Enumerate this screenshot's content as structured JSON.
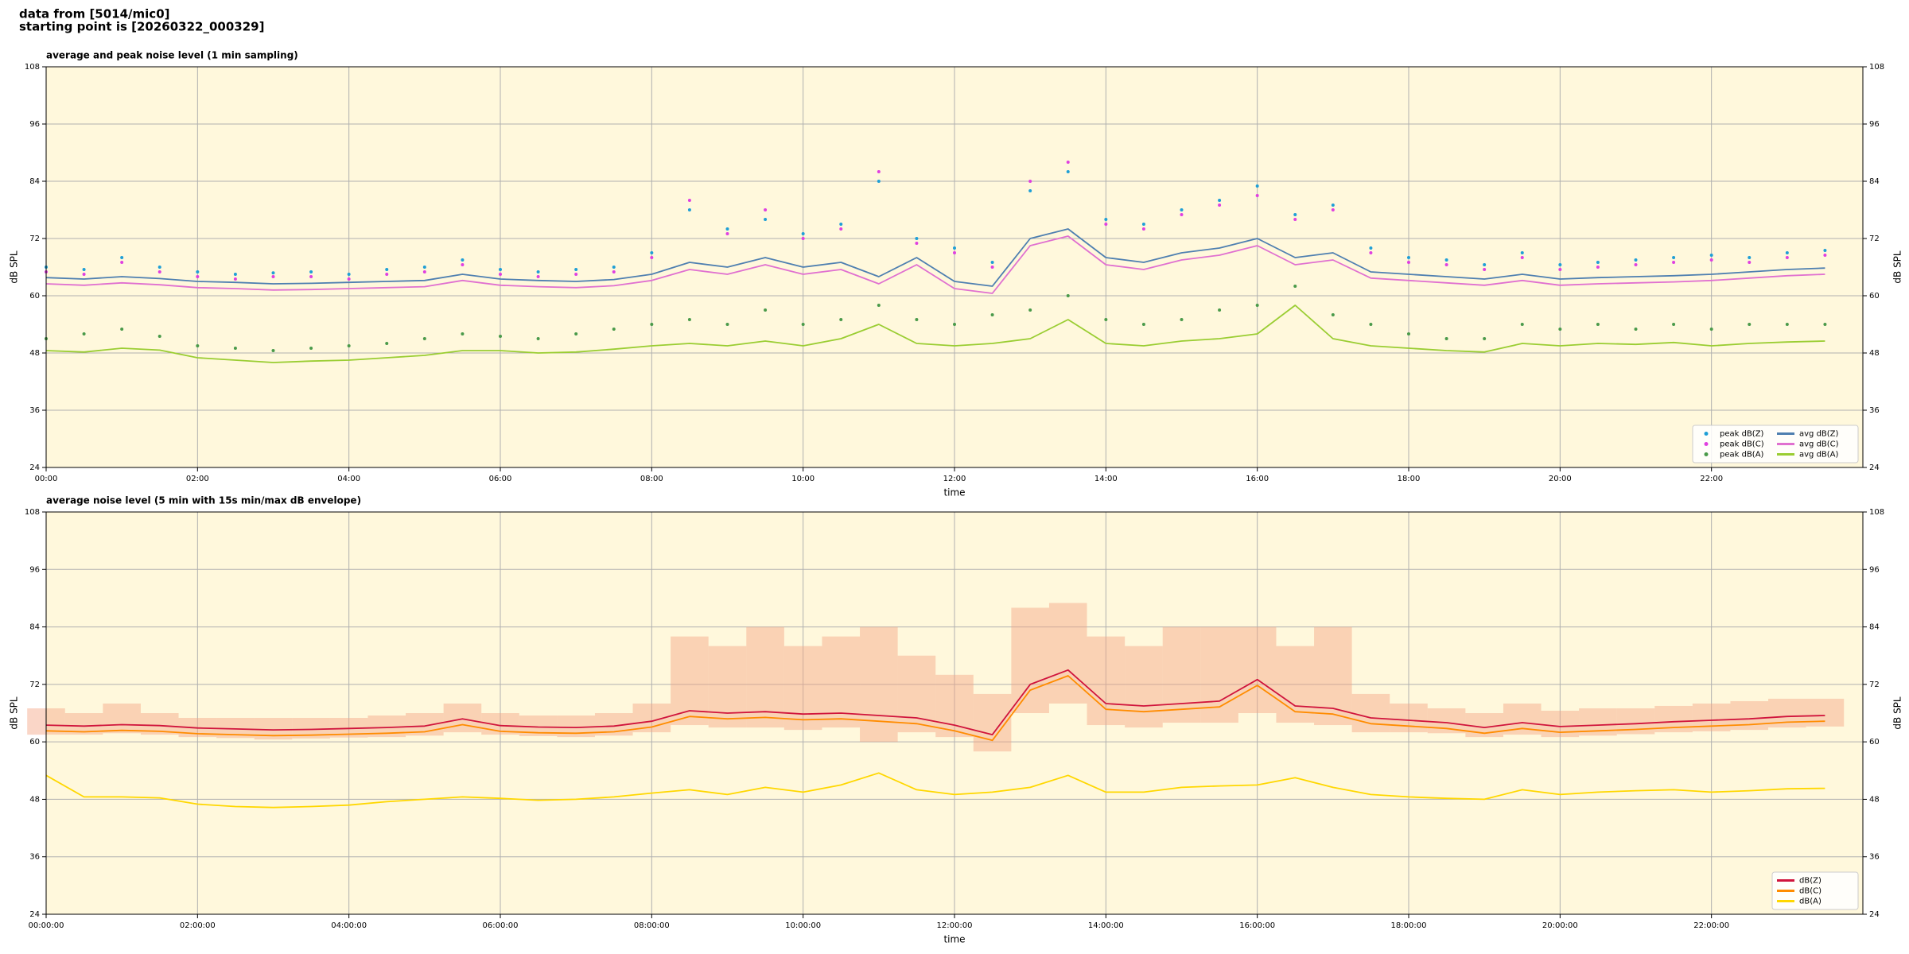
{
  "header": {
    "lines": [
      "data from [5014/mic0]",
      "starting point is [20260322_000329]"
    ]
  },
  "chart_data": [
    {
      "type": "line",
      "title": "average and peak noise level (1 min sampling)",
      "x_label": "time",
      "y_label": "dB SPL",
      "xlim": [
        0,
        24
      ],
      "ylim": [
        24,
        108
      ],
      "yticks": [
        24,
        36,
        48,
        60,
        72,
        84,
        96,
        108
      ],
      "xticks": [
        {
          "value": 0,
          "label": "00:00"
        },
        {
          "value": 2,
          "label": "02:00"
        },
        {
          "value": 4,
          "label": "04:00"
        },
        {
          "value": 6,
          "label": "06:00"
        },
        {
          "value": 8,
          "label": "08:00"
        },
        {
          "value": 10,
          "label": "10:00"
        },
        {
          "value": 12,
          "label": "12:00"
        },
        {
          "value": 14,
          "label": "14:00"
        },
        {
          "value": 16,
          "label": "16:00"
        },
        {
          "value": 18,
          "label": "18:00"
        },
        {
          "value": 20,
          "label": "20:00"
        },
        {
          "value": 22,
          "label": "22:00"
        }
      ],
      "grid": true,
      "legend": "lower right",
      "legend_columns": 2,
      "x": [
        0,
        0.5,
        1,
        1.5,
        2,
        2.5,
        3,
        3.5,
        4,
        4.5,
        5,
        5.5,
        6,
        6.5,
        7,
        7.5,
        8,
        8.5,
        9,
        9.5,
        10,
        10.5,
        11,
        11.5,
        12,
        12.5,
        13,
        13.5,
        14,
        14.5,
        15,
        15.5,
        16,
        16.5,
        17,
        17.5,
        18,
        18.5,
        19,
        19.5,
        20,
        20.5,
        21,
        21.5,
        22,
        22.5,
        23,
        23.5
      ],
      "series": [
        {
          "name": "peak dB(Z)",
          "mark": "dot",
          "color": "#1f9fd6",
          "values": [
            66,
            65.5,
            68,
            66,
            65,
            64.5,
            64.8,
            65,
            64.5,
            65.5,
            66,
            67.5,
            65.5,
            65,
            65.5,
            66,
            69,
            78,
            74,
            76,
            73,
            75,
            84,
            72,
            70,
            67,
            82,
            86,
            76,
            75,
            78,
            80,
            83,
            77,
            79,
            70,
            68,
            67.5,
            66.5,
            69,
            66.5,
            67,
            67.5,
            68,
            68.5,
            68,
            69,
            69.5
          ]
        },
        {
          "name": "peak dB(C)",
          "mark": "dot",
          "color": "#e040e0",
          "values": [
            65,
            64.5,
            67,
            65,
            64,
            63.5,
            64,
            64,
            63.5,
            64.5,
            65,
            66.5,
            64.5,
            64,
            64.5,
            65,
            68,
            80,
            73,
            78,
            72,
            74,
            86,
            71,
            69,
            66,
            84,
            88,
            75,
            74,
            77,
            79,
            81,
            76,
            78,
            69,
            67,
            66.5,
            65.5,
            68,
            65.5,
            66,
            66.5,
            67,
            67.5,
            67,
            68,
            68.5
          ]
        },
        {
          "name": "peak dB(A)",
          "mark": "dot",
          "color": "#4a9a4a",
          "values": [
            51,
            52,
            53,
            51.5,
            49.5,
            49,
            48.5,
            49,
            49.5,
            50,
            51,
            52,
            51.5,
            51,
            52,
            53,
            54,
            55,
            54,
            57,
            54,
            55,
            58,
            55,
            54,
            56,
            57,
            60,
            55,
            54,
            55,
            57,
            58,
            62,
            56,
            54,
            52,
            51,
            51,
            54,
            53,
            54,
            53,
            54,
            53,
            54,
            54,
            54
          ]
        },
        {
          "name": "avg dB(Z)",
          "mark": "line",
          "color": "#4e7fb0",
          "values": [
            63.8,
            63.5,
            64,
            63.6,
            63,
            62.8,
            62.5,
            62.6,
            62.8,
            63,
            63.2,
            64.5,
            63.5,
            63.2,
            63,
            63.4,
            64.5,
            67,
            66,
            68,
            66,
            67,
            64,
            68,
            63,
            62,
            72,
            74,
            68,
            67,
            69,
            70,
            72,
            68,
            69,
            65,
            64.5,
            64,
            63.5,
            64.5,
            63.5,
            63.8,
            64,
            64.2,
            64.5,
            65,
            65.5,
            65.8
          ]
        },
        {
          "name": "avg dB(C)",
          "mark": "line",
          "color": "#e070d0",
          "values": [
            62.5,
            62.2,
            62.7,
            62.3,
            61.7,
            61.5,
            61.2,
            61.3,
            61.5,
            61.7,
            61.9,
            63.2,
            62.2,
            61.9,
            61.7,
            62.1,
            63.2,
            65.5,
            64.5,
            66.5,
            64.5,
            65.5,
            62.5,
            66.5,
            61.5,
            60.5,
            70.5,
            72.5,
            66.5,
            65.5,
            67.5,
            68.5,
            70.5,
            66.5,
            67.5,
            63.7,
            63.2,
            62.7,
            62.2,
            63.2,
            62.2,
            62.5,
            62.7,
            62.9,
            63.2,
            63.7,
            64.2,
            64.5
          ]
        },
        {
          "name": "avg dB(A)",
          "mark": "line",
          "color": "#9acd32",
          "values": [
            48.5,
            48.2,
            49,
            48.6,
            47,
            46.5,
            46,
            46.3,
            46.5,
            47,
            47.5,
            48.5,
            48.5,
            48,
            48.2,
            48.8,
            49.5,
            50,
            49.5,
            50.5,
            49.5,
            51,
            54,
            50,
            49.5,
            50,
            51,
            55,
            50,
            49.5,
            50.5,
            51,
            52,
            58,
            51,
            49.5,
            49,
            48.5,
            48.2,
            50,
            49.5,
            50,
            49.8,
            50.2,
            49.5,
            50,
            50.3,
            50.5
          ]
        }
      ]
    },
    {
      "type": "line",
      "title": "average noise level (5 min with 15s min/max dB envelope)",
      "x_label": "time",
      "y_label": "dB SPL",
      "xlim": [
        0,
        24
      ],
      "ylim": [
        24,
        108
      ],
      "yticks": [
        24,
        36,
        48,
        60,
        72,
        84,
        96,
        108
      ],
      "xticks": [
        {
          "value": 0,
          "label": "00:00:00"
        },
        {
          "value": 2,
          "label": "02:00:00"
        },
        {
          "value": 4,
          "label": "04:00:00"
        },
        {
          "value": 6,
          "label": "06:00:00"
        },
        {
          "value": 8,
          "label": "08:00:00"
        },
        {
          "value": 10,
          "label": "10:00:00"
        },
        {
          "value": 12,
          "label": "12:00:00"
        },
        {
          "value": 14,
          "label": "14:00:00"
        },
        {
          "value": 16,
          "label": "16:00:00"
        },
        {
          "value": 18,
          "label": "18:00:00"
        },
        {
          "value": 20,
          "label": "20:00:00"
        },
        {
          "value": 22,
          "label": "22:00:00"
        }
      ],
      "grid": true,
      "legend": "lower right",
      "legend_columns": 1,
      "x": [
        0,
        0.5,
        1,
        1.5,
        2,
        2.5,
        3,
        3.5,
        4,
        4.5,
        5,
        5.5,
        6,
        6.5,
        7,
        7.5,
        8,
        8.5,
        9,
        9.5,
        10,
        10.5,
        11,
        11.5,
        12,
        12.5,
        13,
        13.5,
        14,
        14.5,
        15,
        15.5,
        16,
        16.5,
        17,
        17.5,
        18,
        18.5,
        19,
        19.5,
        20,
        20.5,
        21,
        21.5,
        22,
        22.5,
        23,
        23.5
      ],
      "envelope": {
        "color": "#f4a582",
        "lower": [
          61.5,
          61.5,
          61.8,
          61.5,
          61,
          60.8,
          60.5,
          60.7,
          60.9,
          61,
          61.3,
          62,
          61.5,
          61.2,
          61,
          61.3,
          62,
          63.5,
          63,
          63,
          62.5,
          63,
          60,
          62,
          61,
          58,
          66,
          68,
          63.5,
          63,
          64,
          64,
          66,
          64,
          63.5,
          62,
          62,
          61.8,
          61,
          61.5,
          61,
          61.3,
          61.6,
          62,
          62.2,
          62.5,
          63,
          63.2
        ],
        "upper": [
          67,
          66,
          68,
          66,
          65,
          65,
          65,
          65,
          65,
          65.5,
          66,
          68,
          66,
          65.5,
          65.5,
          66,
          68,
          82,
          80,
          84,
          80,
          82,
          84,
          78,
          74,
          70,
          88,
          89,
          82,
          80,
          84,
          84,
          84,
          80,
          84,
          70,
          68,
          67,
          66,
          68,
          66.5,
          67,
          67,
          67.5,
          68,
          68.5,
          69,
          69
        ]
      },
      "series": [
        {
          "name": "dB(Z)",
          "mark": "line",
          "color": "#d0143c",
          "values": [
            63.5,
            63.3,
            63.6,
            63.4,
            62.9,
            62.7,
            62.5,
            62.6,
            62.8,
            63,
            63.3,
            64.8,
            63.4,
            63.1,
            63,
            63.3,
            64.3,
            66.5,
            66,
            66.3,
            65.8,
            66,
            65.5,
            65,
            63.5,
            61.5,
            72,
            75,
            68,
            67.5,
            68,
            68.5,
            73,
            67.5,
            67,
            65,
            64.5,
            64,
            63,
            64,
            63.2,
            63.5,
            63.8,
            64.2,
            64.5,
            64.8,
            65.3,
            65.5
          ]
        },
        {
          "name": "dB(C)",
          "mark": "line",
          "color": "#ff8c00",
          "values": [
            62.3,
            62.1,
            62.4,
            62.2,
            61.7,
            61.5,
            61.3,
            61.4,
            61.6,
            61.8,
            62.1,
            63.6,
            62.2,
            61.9,
            61.8,
            62.1,
            63.1,
            65.3,
            64.8,
            65.1,
            64.6,
            64.8,
            64.3,
            63.8,
            62.3,
            60.3,
            70.8,
            73.8,
            66.8,
            66.3,
            66.8,
            67.3,
            71.8,
            66.3,
            65.8,
            63.8,
            63.3,
            62.8,
            61.8,
            62.8,
            62,
            62.3,
            62.6,
            63,
            63.3,
            63.6,
            64.1,
            64.3
          ]
        },
        {
          "name": "dB(A)",
          "mark": "line",
          "color": "#ffd700",
          "values": [
            53,
            48.5,
            48.5,
            48.3,
            47,
            46.5,
            46.3,
            46.5,
            46.8,
            47.5,
            48,
            48.5,
            48.2,
            47.8,
            48,
            48.5,
            49.3,
            50,
            49,
            50.5,
            49.5,
            51,
            53.5,
            50,
            49,
            49.5,
            50.5,
            53,
            49.5,
            49.5,
            50.5,
            50.8,
            51,
            52.5,
            50.5,
            49,
            48.5,
            48.2,
            48,
            50,
            49,
            49.5,
            49.8,
            50,
            49.5,
            49.8,
            50.2,
            50.3
          ]
        }
      ]
    }
  ]
}
